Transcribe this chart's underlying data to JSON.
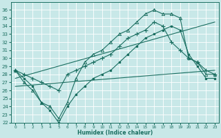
{
  "xlabel": "Humidex (Indice chaleur)",
  "xlim": [
    -0.5,
    23.5
  ],
  "ylim": [
    22,
    37
  ],
  "yticks": [
    22,
    23,
    24,
    25,
    26,
    27,
    28,
    29,
    30,
    31,
    32,
    33,
    34,
    35,
    36
  ],
  "xticks": [
    0,
    1,
    2,
    3,
    4,
    5,
    6,
    7,
    8,
    9,
    10,
    11,
    12,
    13,
    14,
    15,
    16,
    17,
    18,
    19,
    20,
    21,
    22,
    23
  ],
  "bg_color": "#c8e8e8",
  "grid_color": "#aed4d4",
  "line_color": "#1a6e60",
  "line1_x": [
    0,
    1,
    2,
    3,
    4,
    5,
    6,
    7,
    8,
    9,
    10,
    11,
    12,
    13,
    14,
    15,
    16,
    17,
    18,
    19,
    20,
    21,
    22,
    23
  ],
  "line1_y": [
    28.5,
    28.0,
    27.5,
    27.0,
    26.5,
    26.0,
    28.0,
    28.5,
    29.0,
    29.5,
    30.0,
    30.5,
    31.5,
    32.5,
    33.0,
    33.5,
    34.5,
    34.0,
    32.0,
    31.0,
    30.0,
    29.5,
    28.5,
    28.0
  ],
  "line2_x": [
    0,
    1,
    2,
    3,
    4,
    5,
    6,
    7,
    8,
    9,
    10,
    11,
    12,
    13,
    14,
    15,
    16,
    17,
    18,
    19,
    20,
    21,
    22,
    23
  ],
  "line2_y": [
    28.5,
    27.0,
    26.0,
    24.5,
    24.0,
    22.5,
    24.5,
    27.5,
    29.5,
    30.5,
    31.0,
    32.0,
    33.0,
    33.5,
    34.5,
    35.5,
    36.0,
    35.5,
    35.5,
    35.0,
    30.0,
    29.5,
    28.0,
    28.0
  ],
  "line3_x": [
    0,
    23
  ],
  "line3_y": [
    27.5,
    34.5
  ],
  "line4_x": [
    0,
    23
  ],
  "line4_y": [
    26.5,
    28.5
  ],
  "line5_x": [
    0,
    1,
    2,
    3,
    4,
    5,
    6,
    7,
    8,
    9,
    10,
    11,
    12,
    13,
    14,
    15,
    16,
    17,
    18,
    19,
    20,
    21,
    22,
    23
  ],
  "line5_y": [
    28.5,
    27.5,
    26.5,
    24.5,
    23.5,
    22.0,
    24.0,
    25.5,
    26.5,
    27.5,
    28.0,
    28.5,
    29.5,
    30.5,
    31.5,
    32.5,
    33.0,
    33.5,
    34.0,
    33.5,
    30.5,
    29.0,
    27.5,
    27.5
  ]
}
